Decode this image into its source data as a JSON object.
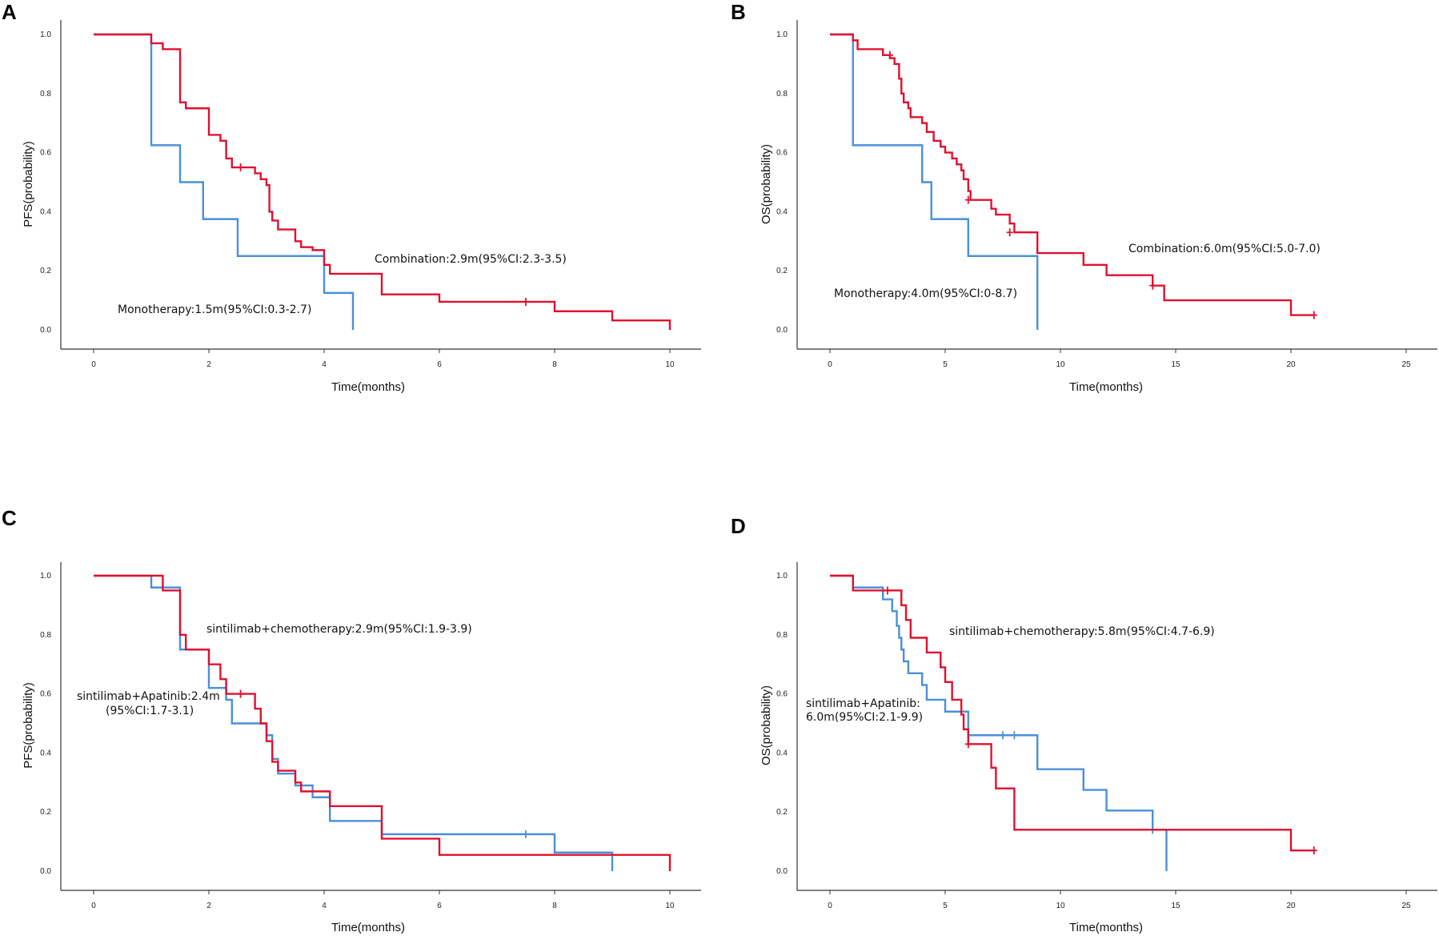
{
  "chart_data": [
    {
      "panel": "A",
      "type": "line",
      "subtype": "kaplan-meier",
      "xlabel": "Time(months)",
      "ylabel": "PFS(probability)",
      "xlim": [
        0,
        10
      ],
      "ylim": [
        0,
        1
      ],
      "xticks": [
        "0",
        "2",
        "4",
        "6",
        "8",
        "10"
      ],
      "yticks": [
        "0.0",
        "0.2",
        "0.4",
        "0.6",
        "0.8",
        "1.0"
      ],
      "series": [
        {
          "name": "Monotherapy",
          "color": "#4a90d9",
          "steps": [
            [
              0,
              1.0
            ],
            [
              1.0,
              0.625
            ],
            [
              1.5,
              0.5
            ],
            [
              1.9,
              0.375
            ],
            [
              2.5,
              0.25
            ],
            [
              4.0,
              0.125
            ],
            [
              4.5,
              0.0
            ]
          ],
          "end": 4.5,
          "censored": []
        },
        {
          "name": "Combination",
          "color": "#e0102f",
          "steps": [
            [
              0,
              1.0
            ],
            [
              1.0,
              0.97
            ],
            [
              1.2,
              0.95
            ],
            [
              1.5,
              0.77
            ],
            [
              1.6,
              0.75
            ],
            [
              2.0,
              0.66
            ],
            [
              2.2,
              0.64
            ],
            [
              2.3,
              0.58
            ],
            [
              2.4,
              0.55
            ],
            [
              2.7,
              0.55
            ],
            [
              2.8,
              0.53
            ],
            [
              2.9,
              0.51
            ],
            [
              3.0,
              0.49
            ],
            [
              3.05,
              0.4
            ],
            [
              3.1,
              0.37
            ],
            [
              3.2,
              0.34
            ],
            [
              3.5,
              0.3
            ],
            [
              3.6,
              0.28
            ],
            [
              3.8,
              0.27
            ],
            [
              4.0,
              0.22
            ],
            [
              4.1,
              0.19
            ],
            [
              5.0,
              0.12
            ],
            [
              6.0,
              0.095
            ],
            [
              8.0,
              0.063
            ],
            [
              9.0,
              0.032
            ],
            [
              10.0,
              0.0
            ]
          ],
          "end": 10.0,
          "censored": [
            [
              2.55,
              0.55
            ],
            [
              7.5,
              0.095
            ]
          ]
        }
      ],
      "annotations": [
        {
          "text": "Combination:2.9m(95%CI:2.3-3.5)"
        },
        {
          "text": "Monotherapy:1.5m(95%CI:0.3-2.7)"
        }
      ]
    },
    {
      "panel": "B",
      "type": "line",
      "subtype": "kaplan-meier",
      "xlabel": "Time(months)",
      "ylabel": "OS(probability)",
      "xlim": [
        0,
        25
      ],
      "ylim": [
        0,
        1
      ],
      "xticks": [
        "0",
        "5",
        "10",
        "15",
        "20",
        "25"
      ],
      "yticks": [
        "0.0",
        "0.2",
        "0.4",
        "0.6",
        "0.8",
        "1.0"
      ],
      "series": [
        {
          "name": "Monotherapy",
          "color": "#4a90d9",
          "steps": [
            [
              0,
              1.0
            ],
            [
              1.0,
              0.625
            ],
            [
              4.0,
              0.5
            ],
            [
              4.4,
              0.375
            ],
            [
              6.0,
              0.25
            ],
            [
              9.0,
              0.0
            ]
          ],
          "end": 9.0,
          "censored": []
        },
        {
          "name": "Combination",
          "color": "#e0102f",
          "steps": [
            [
              0,
              1.0
            ],
            [
              1.0,
              0.98
            ],
            [
              1.2,
              0.95
            ],
            [
              2.3,
              0.93
            ],
            [
              2.6,
              0.92
            ],
            [
              2.8,
              0.9
            ],
            [
              3.0,
              0.85
            ],
            [
              3.1,
              0.8
            ],
            [
              3.2,
              0.77
            ],
            [
              3.4,
              0.75
            ],
            [
              3.5,
              0.72
            ],
            [
              4.0,
              0.7
            ],
            [
              4.2,
              0.67
            ],
            [
              4.5,
              0.64
            ],
            [
              4.8,
              0.62
            ],
            [
              5.0,
              0.6
            ],
            [
              5.3,
              0.58
            ],
            [
              5.5,
              0.56
            ],
            [
              5.7,
              0.54
            ],
            [
              5.8,
              0.51
            ],
            [
              6.0,
              0.47
            ],
            [
              6.1,
              0.44
            ],
            [
              7.0,
              0.41
            ],
            [
              7.2,
              0.39
            ],
            [
              7.8,
              0.36
            ],
            [
              8.0,
              0.33
            ],
            [
              9.0,
              0.26
            ],
            [
              11.0,
              0.22
            ],
            [
              12.0,
              0.185
            ],
            [
              14.0,
              0.15
            ],
            [
              14.5,
              0.1
            ],
            [
              20.0,
              0.05
            ]
          ],
          "end": 21.0,
          "censored": [
            [
              2.6,
              0.93
            ],
            [
              6.0,
              0.44
            ],
            [
              7.8,
              0.33
            ],
            [
              14.0,
              0.15
            ],
            [
              21.0,
              0.05
            ]
          ]
        }
      ],
      "annotations": [
        {
          "text": "Combination:6.0m(95%CI:5.0-7.0)"
        },
        {
          "text": "Monotherapy:4.0m(95%CI:0-8.7)"
        }
      ]
    },
    {
      "panel": "C",
      "type": "line",
      "subtype": "kaplan-meier",
      "xlabel": "Time(months)",
      "ylabel": "PFS(probability)",
      "xlim": [
        0,
        10
      ],
      "ylim": [
        0,
        1
      ],
      "xticks": [
        "0",
        "2",
        "4",
        "6",
        "8",
        "10"
      ],
      "yticks": [
        "0.0",
        "0.2",
        "0.4",
        "0.6",
        "0.8",
        "1.0"
      ],
      "series": [
        {
          "name": "sintilimab+Apatinib",
          "color": "#4a90d9",
          "steps": [
            [
              0,
              1.0
            ],
            [
              1.0,
              0.96
            ],
            [
              1.5,
              0.75
            ],
            [
              2.0,
              0.62
            ],
            [
              2.3,
              0.58
            ],
            [
              2.4,
              0.5
            ],
            [
              3.0,
              0.46
            ],
            [
              3.1,
              0.38
            ],
            [
              3.2,
              0.33
            ],
            [
              3.5,
              0.29
            ],
            [
              3.8,
              0.25
            ],
            [
              4.1,
              0.17
            ],
            [
              5.0,
              0.125
            ],
            [
              8.0,
              0.063
            ],
            [
              9.0,
              0.0
            ]
          ],
          "end": 9.0,
          "censored": [
            [
              7.5,
              0.125
            ]
          ]
        },
        {
          "name": "sintilimab+chemotherapy",
          "color": "#e0102f",
          "steps": [
            [
              0,
              1.0
            ],
            [
              1.2,
              0.95
            ],
            [
              1.5,
              0.8
            ],
            [
              1.6,
              0.75
            ],
            [
              2.0,
              0.7
            ],
            [
              2.2,
              0.65
            ],
            [
              2.3,
              0.6
            ],
            [
              2.8,
              0.55
            ],
            [
              2.9,
              0.5
            ],
            [
              3.0,
              0.44
            ],
            [
              3.1,
              0.37
            ],
            [
              3.2,
              0.34
            ],
            [
              3.5,
              0.3
            ],
            [
              3.6,
              0.27
            ],
            [
              4.1,
              0.22
            ],
            [
              5.0,
              0.11
            ],
            [
              6.0,
              0.055
            ],
            [
              10.0,
              0.0
            ]
          ],
          "end": 10.0,
          "censored": [
            [
              2.55,
              0.6
            ]
          ]
        }
      ],
      "annotations": [
        {
          "text": "sintilimab+chemotherapy:2.9m(95%CI:1.9-3.9)"
        },
        {
          "text": "sintilimab+Apatinib:2.4m"
        },
        {
          "text": "(95%CI:1.7-3.1)"
        }
      ]
    },
    {
      "panel": "D",
      "type": "line",
      "subtype": "kaplan-meier",
      "xlabel": "Time(months)",
      "ylabel": "OS(probability)",
      "xlim": [
        0,
        25
      ],
      "ylim": [
        0,
        1
      ],
      "xticks": [
        "0",
        "5",
        "10",
        "15",
        "20",
        "25"
      ],
      "yticks": [
        "0.0",
        "0.2",
        "0.4",
        "0.6",
        "0.8",
        "1.0"
      ],
      "series": [
        {
          "name": "sintilimab+Apatinib",
          "color": "#4a90d9",
          "steps": [
            [
              0,
              1.0
            ],
            [
              1.0,
              0.96
            ],
            [
              2.3,
              0.92
            ],
            [
              2.7,
              0.88
            ],
            [
              2.9,
              0.83
            ],
            [
              3.0,
              0.79
            ],
            [
              3.1,
              0.75
            ],
            [
              3.2,
              0.71
            ],
            [
              3.4,
              0.67
            ],
            [
              4.0,
              0.63
            ],
            [
              4.2,
              0.58
            ],
            [
              5.0,
              0.54
            ],
            [
              6.0,
              0.46
            ],
            [
              9.0,
              0.345
            ],
            [
              11.0,
              0.275
            ],
            [
              12.0,
              0.205
            ],
            [
              14.0,
              0.14
            ],
            [
              14.6,
              0.0
            ]
          ],
          "end": 14.6,
          "censored": [
            [
              7.5,
              0.46
            ],
            [
              8.0,
              0.46
            ],
            [
              14.0,
              0.14
            ]
          ]
        },
        {
          "name": "sintilimab+chemotherapy",
          "color": "#e0102f",
          "steps": [
            [
              0,
              1.0
            ],
            [
              1.0,
              0.95
            ],
            [
              2.5,
              0.95
            ],
            [
              3.0,
              0.95
            ],
            [
              3.1,
              0.9
            ],
            [
              3.3,
              0.85
            ],
            [
              3.5,
              0.79
            ],
            [
              4.2,
              0.74
            ],
            [
              4.8,
              0.69
            ],
            [
              5.0,
              0.64
            ],
            [
              5.3,
              0.58
            ],
            [
              5.7,
              0.53
            ],
            [
              5.8,
              0.48
            ],
            [
              6.0,
              0.43
            ],
            [
              7.0,
              0.35
            ],
            [
              7.2,
              0.28
            ],
            [
              8.0,
              0.14
            ],
            [
              20.0,
              0.07
            ]
          ],
          "end": 21.0,
          "censored": [
            [
              2.5,
              0.95
            ],
            [
              6.0,
              0.43
            ],
            [
              21.0,
              0.07
            ]
          ]
        }
      ],
      "annotations": [
        {
          "text": "sintilimab+chemotherapy:5.8m(95%CI:4.7-6.9)"
        },
        {
          "text": "sintilimab+Apatinib:"
        },
        {
          "text": "6.0m(95%CI:2.1-9.9)"
        }
      ]
    }
  ]
}
